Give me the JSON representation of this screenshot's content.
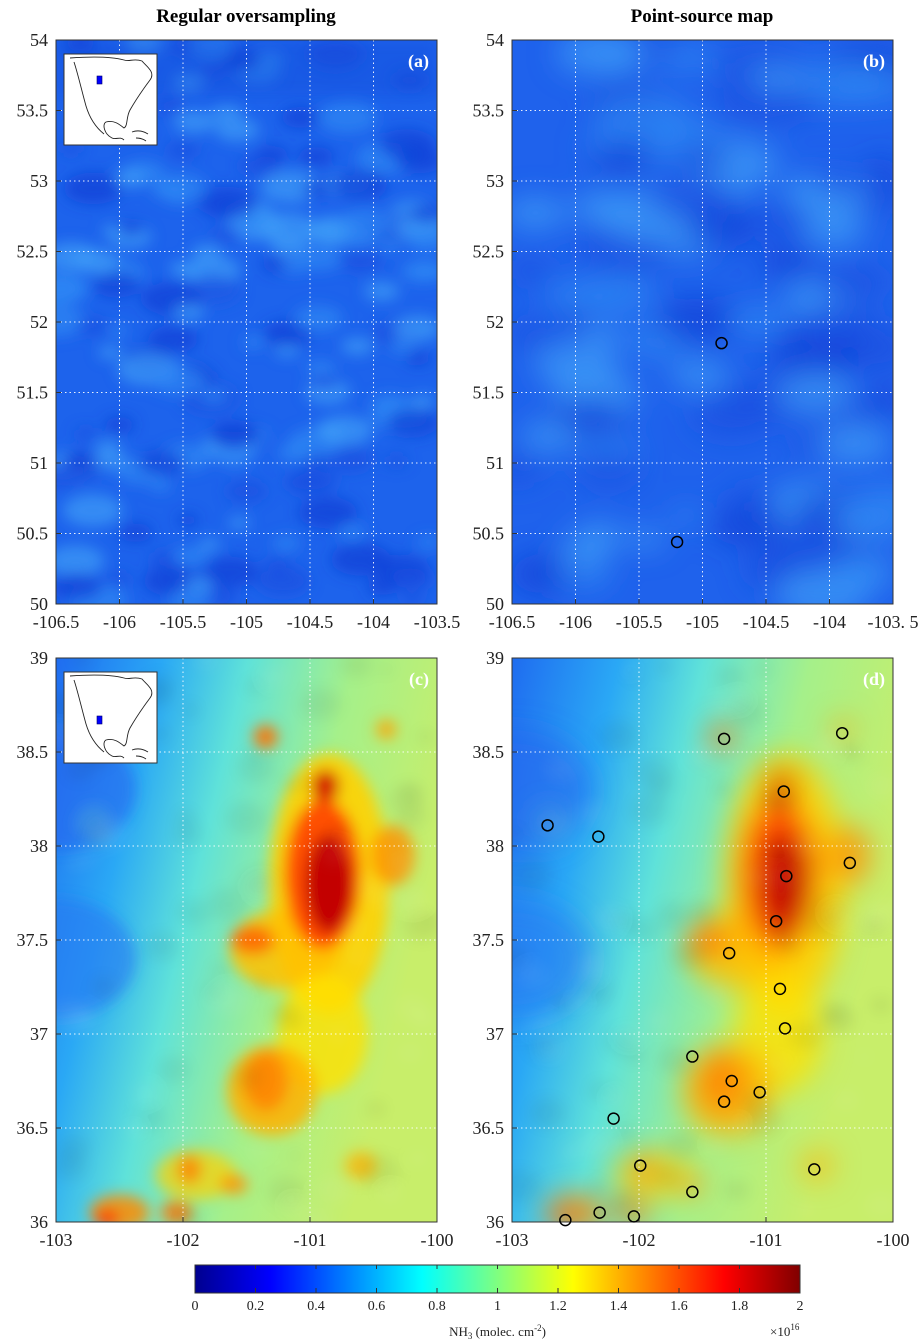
{
  "titles": {
    "left": "Regular oversampling",
    "right": "Point-source map"
  },
  "colorbar": {
    "ticks": [
      "0",
      "0.2",
      "0.4",
      "0.6",
      "0.8",
      "1",
      "1.2",
      "1.4",
      "1.6",
      "1.8",
      "2"
    ],
    "label_main": "NH",
    "label_sub": "3",
    "label_rest": " (molec. cm",
    "label_sup": "-2",
    "label_end": ")",
    "multiplier_base": "×10",
    "multiplier_exp": "16",
    "colormap": "jet",
    "range": [
      0,
      2
    ]
  },
  "chart_data": [
    {
      "type": "heatmap",
      "panel_label": "(a)",
      "xlim": [
        -106.5,
        -103.5
      ],
      "ylim": [
        50,
        54
      ],
      "xticks": [
        "-106.5",
        "-106",
        "-105.5",
        "-105",
        "-104.5",
        "-104",
        "-103.5"
      ],
      "yticks": [
        "50",
        "50.5",
        "51",
        "51.5",
        "52",
        "52.5",
        "53",
        "53.5",
        "54"
      ],
      "grid": true,
      "inset_map": true,
      "value_range_approx": [
        0.25,
        0.6
      ],
      "description_field": "low uniform NH3"
    },
    {
      "type": "heatmap",
      "panel_label": "(b)",
      "xlim": [
        -106.5,
        -103.5
      ],
      "ylim": [
        50,
        54
      ],
      "xticks": [
        "-106.5",
        "-106",
        "-105.5",
        "-105",
        "-104.5",
        "-104",
        "-103. 5"
      ],
      "yticks": [
        "50",
        "50.5",
        "51",
        "51.5",
        "52",
        "52.5",
        "53",
        "53.5",
        "54"
      ],
      "grid": true,
      "point_sources": [
        {
          "x": -104.85,
          "y": 51.85
        },
        {
          "x": -105.2,
          "y": 50.44
        }
      ]
    },
    {
      "type": "heatmap",
      "panel_label": "(c)",
      "xlim": [
        -103,
        -100
      ],
      "ylim": [
        36,
        39
      ],
      "xticks": [
        "-103",
        "-102",
        "-101",
        "-100"
      ],
      "yticks": [
        "36",
        "36.5",
        "37",
        "37.5",
        "38",
        "38.5",
        "39"
      ],
      "grid": true,
      "inset_map": true,
      "hotspot_max_approx": 2.0
    },
    {
      "type": "heatmap",
      "panel_label": "(d)",
      "xlim": [
        -103,
        -100
      ],
      "ylim": [
        36,
        39
      ],
      "xticks": [
        "-103",
        "-102",
        "-101",
        "-100"
      ],
      "yticks": [
        "36",
        "36.5",
        "37",
        "37.5",
        "38",
        "38.5",
        "39"
      ],
      "grid": true,
      "point_sources": [
        {
          "x": -101.33,
          "y": 38.57
        },
        {
          "x": -100.4,
          "y": 38.6
        },
        {
          "x": -100.86,
          "y": 38.29
        },
        {
          "x": -102.72,
          "y": 38.11
        },
        {
          "x": -102.32,
          "y": 38.05
        },
        {
          "x": -100.34,
          "y": 37.91
        },
        {
          "x": -100.84,
          "y": 37.84
        },
        {
          "x": -100.92,
          "y": 37.6
        },
        {
          "x": -101.29,
          "y": 37.43
        },
        {
          "x": -100.89,
          "y": 37.24
        },
        {
          "x": -100.85,
          "y": 37.03
        },
        {
          "x": -101.58,
          "y": 36.88
        },
        {
          "x": -101.27,
          "y": 36.75
        },
        {
          "x": -101.05,
          "y": 36.69
        },
        {
          "x": -101.33,
          "y": 36.64
        },
        {
          "x": -102.2,
          "y": 36.55
        },
        {
          "x": -101.99,
          "y": 36.3
        },
        {
          "x": -100.62,
          "y": 36.28
        },
        {
          "x": -101.58,
          "y": 36.16
        },
        {
          "x": -102.31,
          "y": 36.05
        },
        {
          "x": -102.04,
          "y": 36.03
        },
        {
          "x": -102.58,
          "y": 36.01
        }
      ]
    }
  ]
}
